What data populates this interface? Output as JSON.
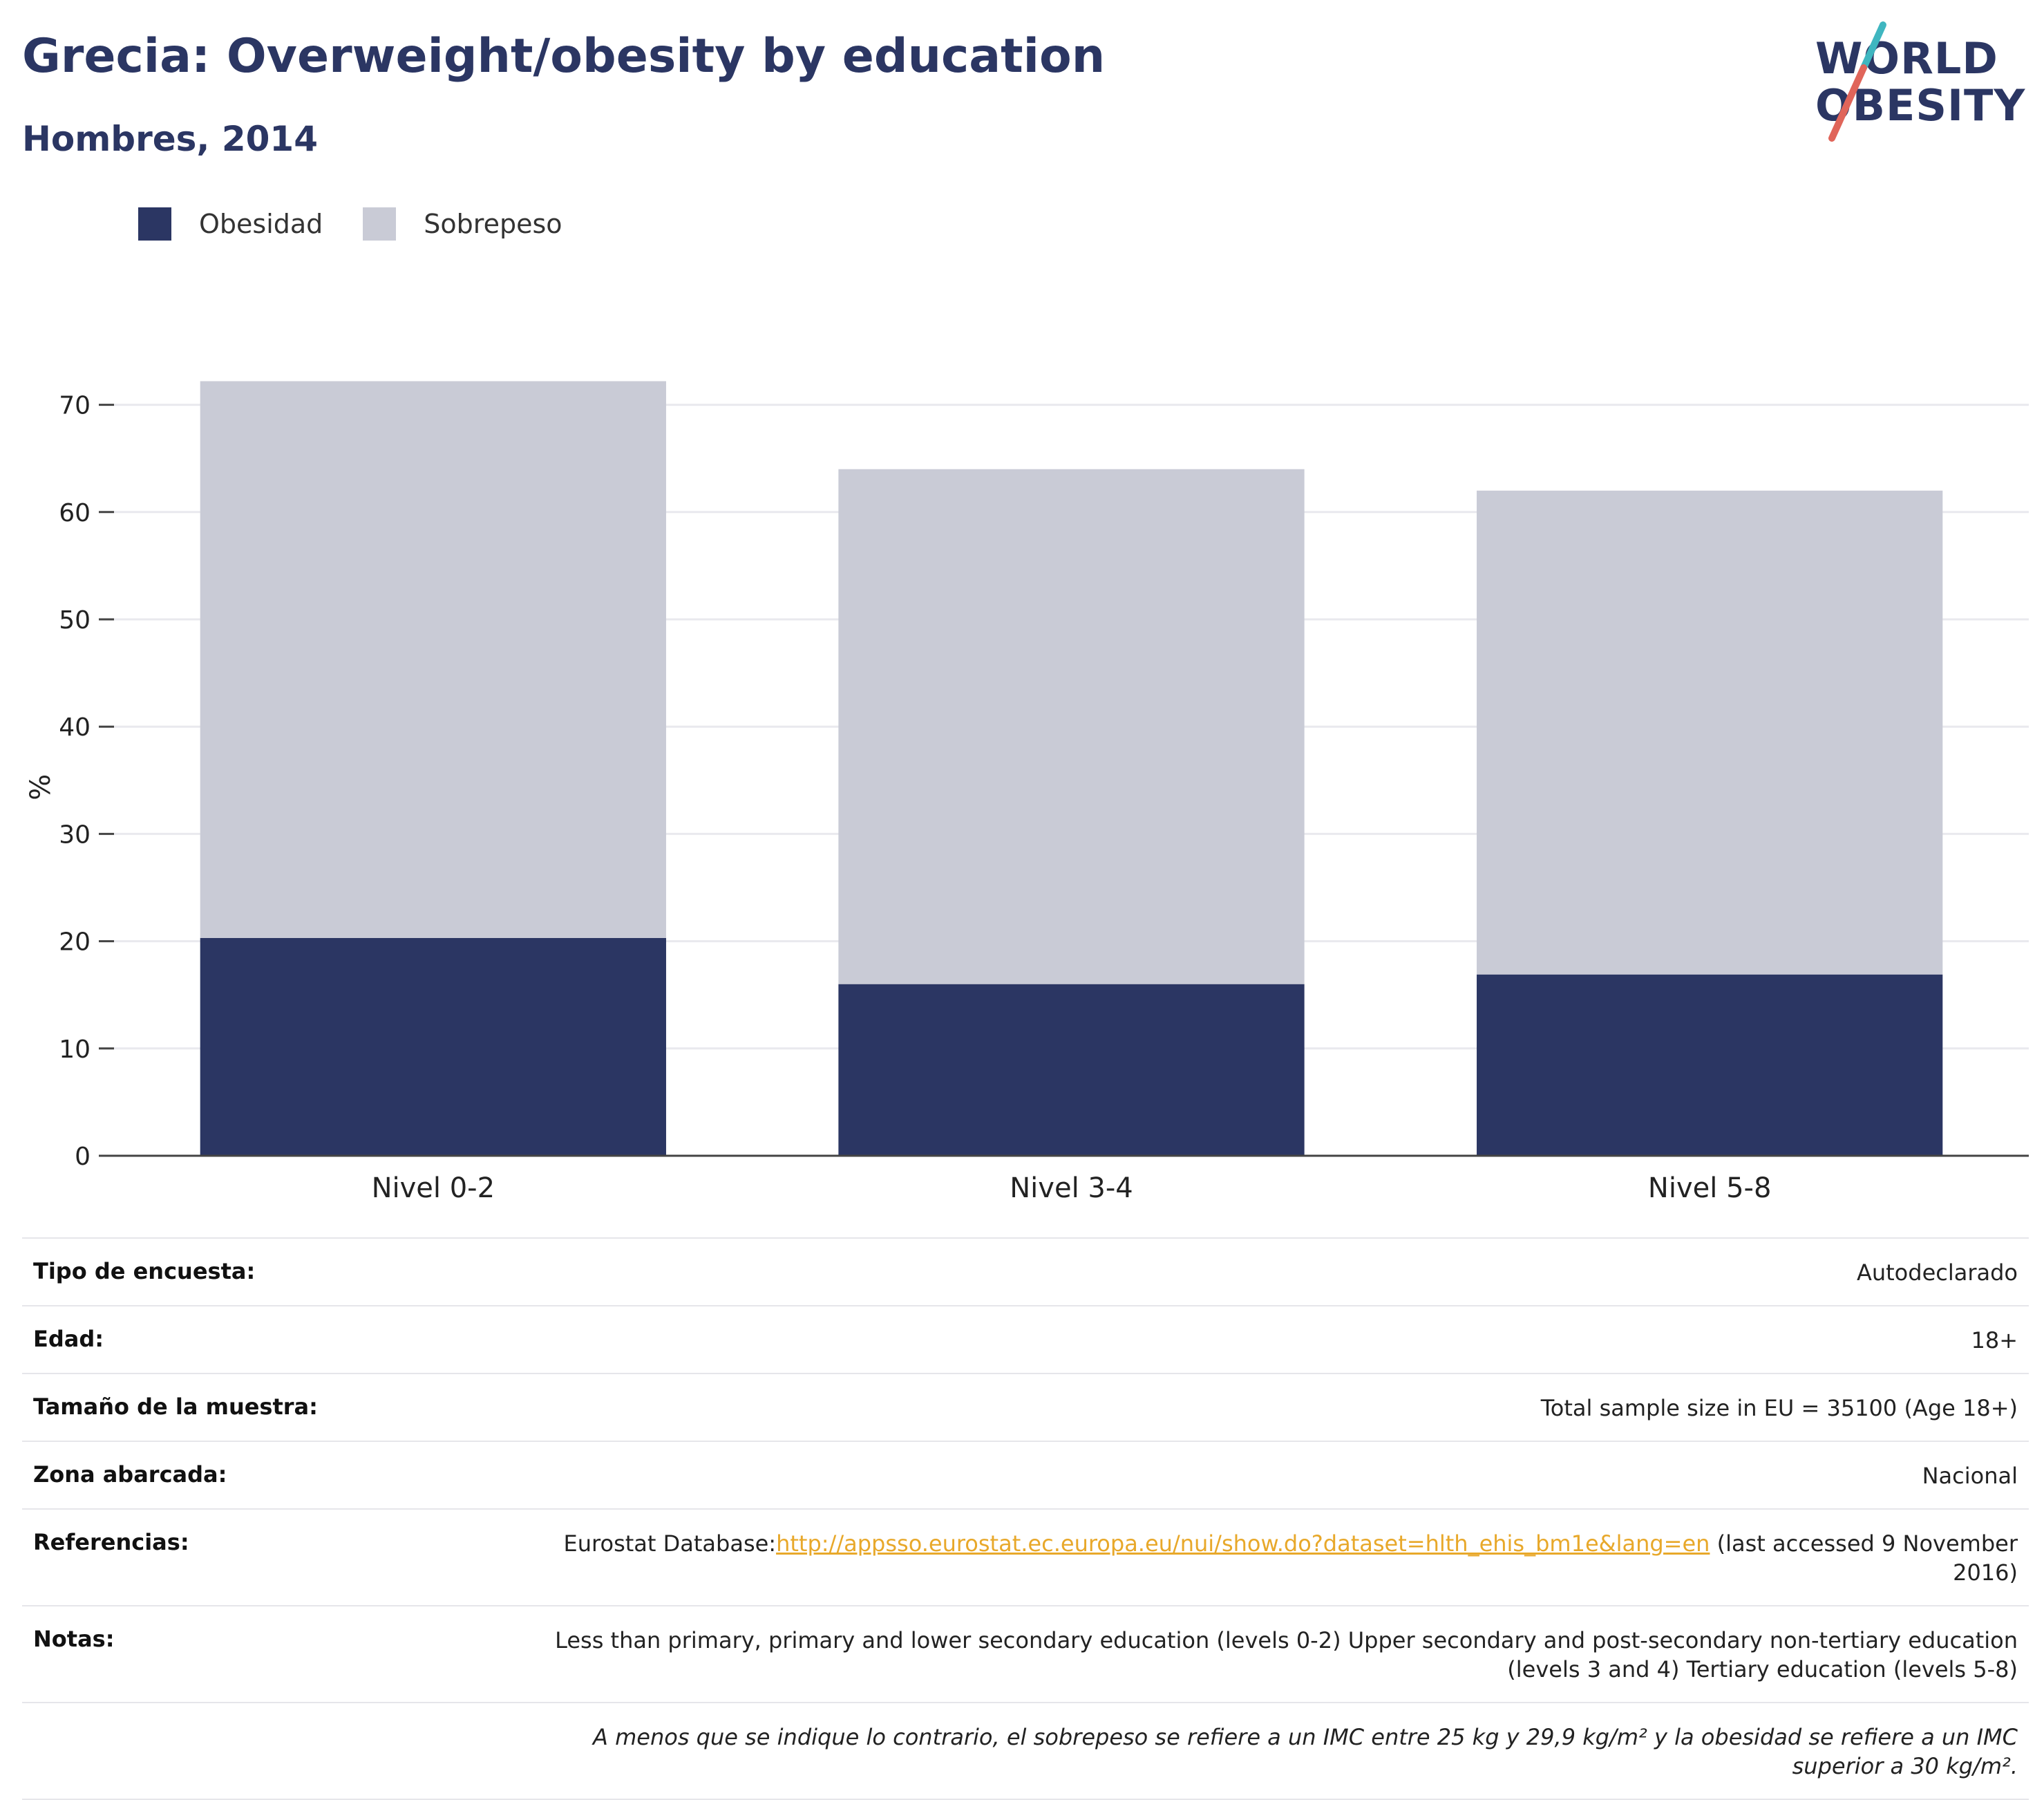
{
  "header": {
    "title": "Grecia: Overweight/obesity by education",
    "subtitle": "Hombres, 2014"
  },
  "logo": {
    "line1": "WORLD",
    "line2": "OBESITY"
  },
  "colors": {
    "obesity": "#2b3663",
    "overweight": "#c9cbd6",
    "accent_teal": "#3fb6c0",
    "accent_red": "#e0655a",
    "link": "#e8a82a"
  },
  "chart_data": {
    "type": "bar",
    "stacked": true,
    "categories": [
      "Nivel 0-2",
      "Nivel 3-4",
      "Nivel 5-8"
    ],
    "series": [
      {
        "name": "Obesidad",
        "color": "#2b3663",
        "values": [
          20.3,
          16.0,
          16.9
        ]
      },
      {
        "name": "Sobrepeso",
        "color": "#c9cbd6",
        "values": [
          51.9,
          48.0,
          45.1
        ]
      }
    ],
    "title": "",
    "xlabel": "",
    "ylabel": "%",
    "ylim": [
      0,
      75
    ],
    "yticks": [
      0,
      10,
      20,
      30,
      40,
      50,
      60,
      70
    ],
    "grid": true,
    "legend_position": "top-left"
  },
  "info": {
    "rows": [
      {
        "key": "Tipo de encuesta:",
        "value": "Autodeclarado"
      },
      {
        "key": "Edad:",
        "value": "18+"
      },
      {
        "key": "Tamaño de la muestra:",
        "value": "Total sample size in EU = 35100 (Age 18+)"
      },
      {
        "key": "Zona abarcada:",
        "value": "Nacional"
      }
    ],
    "references": {
      "key": "Referencias:",
      "prefix": "Eurostat Database:",
      "link": "http://appsso.eurostat.ec.europa.eu/nui/show.do?dataset=hlth_ehis_bm1e&lang=en",
      "suffix": " (last accessed 9 November 2016)"
    },
    "notes": {
      "key": "Notas:",
      "value": "Less than primary, primary and lower secondary education (levels 0-2) Upper secondary and post-secondary non-tertiary education (levels 3 and 4) Tertiary education (levels 5-8)"
    },
    "footnote": "A menos que se indique lo contrario, el sobrepeso se refiere a un IMC entre 25 kg y 29,9 kg/m² y la obesidad se refiere a un IMC superior a 30 kg/m²."
  }
}
